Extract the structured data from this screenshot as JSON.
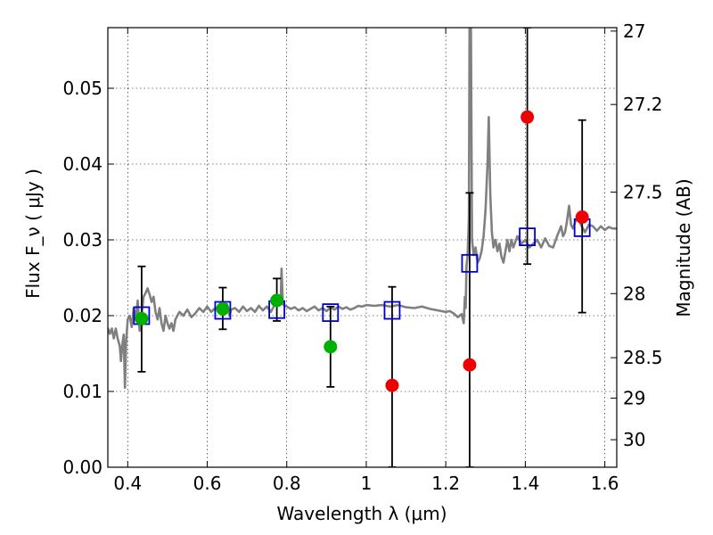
{
  "chart_data": {
    "type": "scatter",
    "xlabel": "Wavelength  λ (μm)",
    "ylabel_left": "Flux  F_ν  ( μJy )",
    "ylabel_right": "Magnitude (AB)",
    "xlim": [
      0.35,
      1.63
    ],
    "ylim": [
      0.0,
      0.058
    ],
    "x_ticks": [
      {
        "value": 0.4,
        "label": "0.4"
      },
      {
        "value": 0.6,
        "label": "0.6"
      },
      {
        "value": 0.8,
        "label": "0.8"
      },
      {
        "value": 1.0,
        "label": "1"
      },
      {
        "value": 1.2,
        "label": "1.2"
      },
      {
        "value": 1.4,
        "label": "1.4"
      },
      {
        "value": 1.6,
        "label": "1.6"
      }
    ],
    "y_ticks": [
      {
        "value": 0.0,
        "label": "0.00"
      },
      {
        "value": 0.01,
        "label": "0.01"
      },
      {
        "value": 0.02,
        "label": "0.02"
      },
      {
        "value": 0.03,
        "label": "0.03"
      },
      {
        "value": 0.04,
        "label": "0.04"
      },
      {
        "value": 0.05,
        "label": "0.05"
      }
    ],
    "mag_ticks": [
      {
        "mag": 27,
        "label": "27"
      },
      {
        "mag": 27.2,
        "label": "27.2"
      },
      {
        "mag": 27.5,
        "label": "27.5"
      },
      {
        "mag": 28,
        "label": "28"
      },
      {
        "mag": 28.5,
        "label": "28.5"
      },
      {
        "mag": 29,
        "label": "29"
      },
      {
        "mag": 30,
        "label": "30"
      }
    ],
    "grid": true,
    "colors": {
      "template": "#808080",
      "model": "#0000cc",
      "detection": "#00b000",
      "nondetection": "#ee0000",
      "errorbar": "#000000"
    },
    "sed_template": [
      [
        0.35,
        0.0184
      ],
      [
        0.355,
        0.0176
      ],
      [
        0.36,
        0.0183
      ],
      [
        0.365,
        0.017
      ],
      [
        0.37,
        0.0183
      ],
      [
        0.375,
        0.0169
      ],
      [
        0.38,
        0.016
      ],
      [
        0.383,
        0.014
      ],
      [
        0.386,
        0.016
      ],
      [
        0.39,
        0.0175
      ],
      [
        0.393,
        0.0105
      ],
      [
        0.396,
        0.0165
      ],
      [
        0.4,
        0.0195
      ],
      [
        0.405,
        0.02
      ],
      [
        0.41,
        0.0185
      ],
      [
        0.415,
        0.021
      ],
      [
        0.42,
        0.0195
      ],
      [
        0.425,
        0.022
      ],
      [
        0.43,
        0.018
      ],
      [
        0.435,
        0.02
      ],
      [
        0.44,
        0.0225
      ],
      [
        0.445,
        0.023
      ],
      [
        0.45,
        0.0236
      ],
      [
        0.455,
        0.0228
      ],
      [
        0.46,
        0.0218
      ],
      [
        0.465,
        0.0225
      ],
      [
        0.47,
        0.0205
      ],
      [
        0.475,
        0.0195
      ],
      [
        0.48,
        0.021
      ],
      [
        0.485,
        0.019
      ],
      [
        0.49,
        0.018
      ],
      [
        0.495,
        0.02
      ],
      [
        0.5,
        0.019
      ],
      [
        0.505,
        0.0183
      ],
      [
        0.51,
        0.019
      ],
      [
        0.515,
        0.018
      ],
      [
        0.52,
        0.0195
      ],
      [
        0.53,
        0.0205
      ],
      [
        0.54,
        0.02
      ],
      [
        0.55,
        0.0208
      ],
      [
        0.56,
        0.0198
      ],
      [
        0.57,
        0.0203
      ],
      [
        0.58,
        0.021
      ],
      [
        0.59,
        0.0205
      ],
      [
        0.6,
        0.0212
      ],
      [
        0.61,
        0.0205
      ],
      [
        0.62,
        0.021
      ],
      [
        0.63,
        0.0208
      ],
      [
        0.64,
        0.021
      ],
      [
        0.65,
        0.0215
      ],
      [
        0.656,
        0.02
      ],
      [
        0.66,
        0.0208
      ],
      [
        0.67,
        0.021
      ],
      [
        0.68,
        0.0205
      ],
      [
        0.69,
        0.0212
      ],
      [
        0.7,
        0.0206
      ],
      [
        0.71,
        0.021
      ],
      [
        0.72,
        0.0205
      ],
      [
        0.73,
        0.0213
      ],
      [
        0.74,
        0.0207
      ],
      [
        0.75,
        0.0212
      ],
      [
        0.76,
        0.0205
      ],
      [
        0.77,
        0.0215
      ],
      [
        0.78,
        0.0218
      ],
      [
        0.785,
        0.0225
      ],
      [
        0.787,
        0.0262
      ],
      [
        0.79,
        0.0215
      ],
      [
        0.8,
        0.0212
      ],
      [
        0.81,
        0.0209
      ],
      [
        0.82,
        0.0211
      ],
      [
        0.83,
        0.0207
      ],
      [
        0.84,
        0.021
      ],
      [
        0.85,
        0.0206
      ],
      [
        0.86,
        0.0209
      ],
      [
        0.87,
        0.0212
      ],
      [
        0.88,
        0.0207
      ],
      [
        0.89,
        0.021
      ],
      [
        0.9,
        0.0206
      ],
      [
        0.91,
        0.0211
      ],
      [
        0.92,
        0.0208
      ],
      [
        0.93,
        0.0212
      ],
      [
        0.94,
        0.0209
      ],
      [
        0.95,
        0.0211
      ],
      [
        0.96,
        0.0208
      ],
      [
        0.97,
        0.021
      ],
      [
        0.98,
        0.0213
      ],
      [
        0.99,
        0.0212
      ],
      [
        1.0,
        0.0214
      ],
      [
        1.02,
        0.0213
      ],
      [
        1.04,
        0.0214
      ],
      [
        1.06,
        0.0212
      ],
      [
        1.08,
        0.0214
      ],
      [
        1.1,
        0.0211
      ],
      [
        1.12,
        0.021
      ],
      [
        1.14,
        0.0212
      ],
      [
        1.16,
        0.0209
      ],
      [
        1.18,
        0.0207
      ],
      [
        1.2,
        0.0205
      ],
      [
        1.21,
        0.0206
      ],
      [
        1.22,
        0.0203
      ],
      [
        1.23,
        0.0198
      ],
      [
        1.24,
        0.0202
      ],
      [
        1.245,
        0.019
      ],
      [
        1.248,
        0.0225
      ],
      [
        1.25,
        0.021
      ],
      [
        1.252,
        0.0265
      ],
      [
        1.255,
        0.028
      ],
      [
        1.258,
        0.033
      ],
      [
        1.26,
        0.06
      ],
      [
        1.263,
        0.06
      ],
      [
        1.266,
        0.03
      ],
      [
        1.27,
        0.028
      ],
      [
        1.275,
        0.029
      ],
      [
        1.28,
        0.027
      ],
      [
        1.285,
        0.0275
      ],
      [
        1.29,
        0.0285
      ],
      [
        1.295,
        0.0305
      ],
      [
        1.3,
        0.034
      ],
      [
        1.305,
        0.04
      ],
      [
        1.308,
        0.0462
      ],
      [
        1.312,
        0.036
      ],
      [
        1.316,
        0.031
      ],
      [
        1.32,
        0.029
      ],
      [
        1.325,
        0.03
      ],
      [
        1.33,
        0.0285
      ],
      [
        1.335,
        0.0295
      ],
      [
        1.34,
        0.0278
      ],
      [
        1.345,
        0.027
      ],
      [
        1.35,
        0.0285
      ],
      [
        1.355,
        0.03
      ],
      [
        1.36,
        0.0285
      ],
      [
        1.365,
        0.03
      ],
      [
        1.37,
        0.029
      ],
      [
        1.38,
        0.0305
      ],
      [
        1.39,
        0.0295
      ],
      [
        1.4,
        0.03
      ],
      [
        1.41,
        0.029
      ],
      [
        1.42,
        0.0295
      ],
      [
        1.43,
        0.03
      ],
      [
        1.44,
        0.029
      ],
      [
        1.45,
        0.0302
      ],
      [
        1.46,
        0.0292
      ],
      [
        1.47,
        0.029
      ],
      [
        1.48,
        0.0305
      ],
      [
        1.49,
        0.0318
      ],
      [
        1.495,
        0.0305
      ],
      [
        1.5,
        0.031
      ],
      [
        1.505,
        0.0325
      ],
      [
        1.51,
        0.0345
      ],
      [
        1.515,
        0.032
      ],
      [
        1.52,
        0.0315
      ],
      [
        1.53,
        0.033
      ],
      [
        1.54,
        0.032
      ],
      [
        1.55,
        0.031
      ],
      [
        1.56,
        0.032
      ],
      [
        1.57,
        0.0318
      ],
      [
        1.58,
        0.0312
      ],
      [
        1.59,
        0.0318
      ],
      [
        1.6,
        0.0313
      ],
      [
        1.61,
        0.0317
      ],
      [
        1.62,
        0.0315
      ],
      [
        1.63,
        0.0315
      ]
    ],
    "model_points": [
      {
        "x": 0.435,
        "y": 0.02
      },
      {
        "x": 0.639,
        "y": 0.0207
      },
      {
        "x": 0.775,
        "y": 0.0208
      },
      {
        "x": 0.91,
        "y": 0.0204
      },
      {
        "x": 1.065,
        "y": 0.0207
      },
      {
        "x": 1.26,
        "y": 0.0269
      },
      {
        "x": 1.405,
        "y": 0.0304
      },
      {
        "x": 1.543,
        "y": 0.0316
      }
    ],
    "detections": [
      {
        "x": 0.435,
        "y": 0.0196,
        "yerr_low": 0.0126,
        "yerr_high": 0.0265
      },
      {
        "x": 0.639,
        "y": 0.0209,
        "yerr_low": 0.0182,
        "yerr_high": 0.0237
      },
      {
        "x": 0.775,
        "y": 0.022,
        "yerr_low": 0.0193,
        "yerr_high": 0.0249
      },
      {
        "x": 0.91,
        "y": 0.0159,
        "yerr_low": 0.0106,
        "yerr_high": 0.0212
      }
    ],
    "nondetections": [
      {
        "x": 1.065,
        "y": 0.0108,
        "yerr_low": 0.0,
        "yerr_high": 0.0238
      },
      {
        "x": 1.26,
        "y": 0.0135,
        "yerr_low": 0.0,
        "yerr_high": 0.0362
      },
      {
        "x": 1.405,
        "y": 0.0462,
        "yerr_low": 0.0268,
        "yerr_high": 0.058
      },
      {
        "x": 1.543,
        "y": 0.033,
        "yerr_low": 0.0204,
        "yerr_high": 0.0458
      }
    ]
  }
}
